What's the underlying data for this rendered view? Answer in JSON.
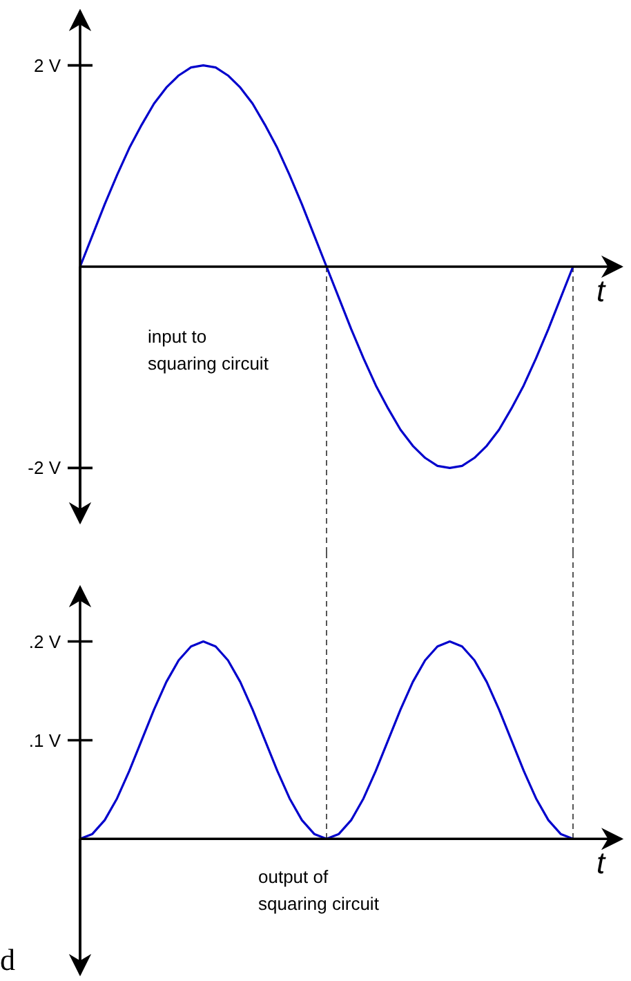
{
  "chart_data": [
    {
      "type": "line",
      "xlabel": "t",
      "categories": [
        null,
        null,
        null,
        null,
        null,
        null,
        null,
        null,
        null,
        null,
        null,
        null,
        null,
        null,
        null,
        null,
        null,
        null,
        null,
        null,
        null,
        null,
        null,
        null,
        null,
        null,
        null,
        null,
        null,
        null,
        null,
        null,
        null,
        null,
        null,
        null,
        null,
        null,
        null,
        null,
        null
      ],
      "series": [
        {
          "color": "#0000cc",
          "values": [
            0,
            0.31,
            0.62,
            0.91,
            1.18,
            1.41,
            1.62,
            1.78,
            1.9,
            1.98,
            2,
            1.98,
            1.9,
            1.78,
            1.62,
            1.41,
            1.18,
            0.91,
            0.62,
            0.31,
            0,
            -0.31,
            -0.62,
            -0.91,
            -1.18,
            -1.41,
            -1.62,
            -1.78,
            -1.9,
            -1.98,
            -2,
            -1.98,
            -1.9,
            -1.78,
            -1.62,
            -1.41,
            -1.18,
            -0.91,
            -0.62,
            -0.31,
            0
          ]
        }
      ],
      "ylim": [
        -2.54,
        2.54
      ],
      "yticks": [
        {
          "value": 2,
          "label": "2 V"
        },
        {
          "value": -2,
          "label": "-2 V"
        }
      ],
      "tick_labels": "y",
      "grid": false,
      "marker": "none",
      "line_style": "solid",
      "annotations": [
        "input to\nsquaring circuit"
      ]
    },
    {
      "type": "line",
      "xlabel": "t",
      "categories": [
        null,
        null,
        null,
        null,
        null,
        null,
        null,
        null,
        null,
        null,
        null,
        null,
        null,
        null,
        null,
        null,
        null,
        null,
        null,
        null,
        null,
        null,
        null,
        null,
        null,
        null,
        null,
        null,
        null,
        null,
        null,
        null,
        null,
        null,
        null,
        null,
        null,
        null,
        null,
        null,
        null
      ],
      "series": [
        {
          "color": "#0000cc",
          "values": [
            0,
            0.005,
            0.019,
            0.041,
            0.069,
            0.1,
            0.131,
            0.159,
            0.181,
            0.195,
            0.2,
            0.195,
            0.181,
            0.159,
            0.131,
            0.1,
            0.069,
            0.041,
            0.019,
            0.005,
            0,
            0.005,
            0.019,
            0.041,
            0.069,
            0.1,
            0.131,
            0.159,
            0.181,
            0.195,
            0.2,
            0.195,
            0.181,
            0.159,
            0.131,
            0.1,
            0.069,
            0.041,
            0.019,
            0.005,
            0
          ]
        }
      ],
      "ylim": [
        -0.137,
        0.255
      ],
      "yticks": [
        {
          "value": 0.1,
          "label": ".1 V"
        },
        {
          "value": 0.2,
          "label": ".2 V"
        }
      ],
      "tick_labels": "y",
      "grid": false,
      "marker": "none",
      "line_style": "solid",
      "annotations": [
        "output of\nsquaring circuit",
        "d"
      ]
    }
  ]
}
